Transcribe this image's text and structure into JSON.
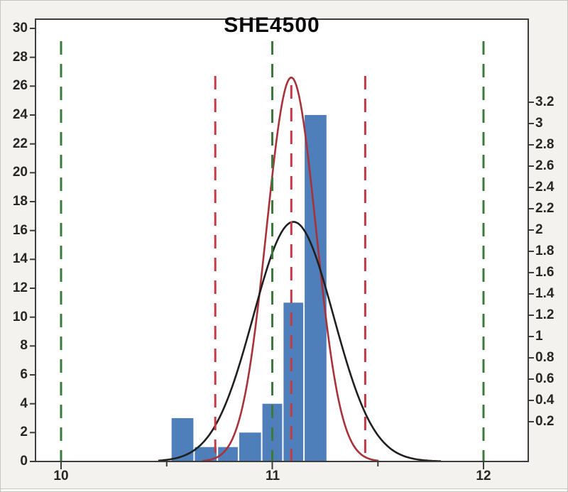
{
  "chart_data": {
    "type": "histogram",
    "title": "SHE4500",
    "x_axis": {
      "ticks": [
        {
          "v": 10,
          "t": "10"
        },
        {
          "v": 11,
          "t": "11"
        },
        {
          "v": 12,
          "t": "12"
        }
      ],
      "minor_ticks": [
        10.5,
        11.5
      ],
      "range": [
        9.88,
        12.22
      ]
    },
    "y_axis_left": {
      "tick_values": [
        0,
        2,
        4,
        6,
        8,
        10,
        12,
        14,
        16,
        18,
        20,
        22,
        24,
        26,
        28,
        30
      ],
      "range": [
        0,
        30.7
      ]
    },
    "y_axis_right": {
      "ticks": [
        {
          "v": 0.2,
          "t": "0.2"
        },
        {
          "v": 0.4,
          "t": "0.4"
        },
        {
          "v": 0.6,
          "t": "0.6"
        },
        {
          "v": 0.8,
          "t": "0.8"
        },
        {
          "v": 1.0,
          "t": "1"
        },
        {
          "v": 1.2,
          "t": "1.2"
        },
        {
          "v": 1.4,
          "t": "1.4"
        },
        {
          "v": 1.6,
          "t": "1.6"
        },
        {
          "v": 1.8,
          "t": "1.8"
        },
        {
          "v": 2.0,
          "t": "2"
        },
        {
          "v": 2.2,
          "t": "2.2"
        },
        {
          "v": 2.4,
          "t": "2.4"
        },
        {
          "v": 2.6,
          "t": "2.6"
        },
        {
          "v": 2.8,
          "t": "2.8"
        },
        {
          "v": 3.0,
          "t": "3"
        },
        {
          "v": 3.2,
          "t": "3.2"
        }
      ]
    },
    "histogram": {
      "bin_edges": [
        10.52,
        10.63,
        10.74,
        10.84,
        10.95,
        11.05,
        11.15,
        11.26
      ],
      "counts": [
        3,
        1,
        1,
        2,
        4,
        11,
        24
      ]
    },
    "fit_curves": [
      {
        "name": "within-fit",
        "mean": 11.09,
        "sigma": 0.117,
        "peak": 26.6,
        "draw_range": [
          10.67,
          11.51
        ],
        "color": "#a8323a"
      },
      {
        "name": "overall-fit",
        "mean": 11.1,
        "sigma": 0.19,
        "peak": 16.6,
        "draw_range": [
          10.46,
          11.8
        ],
        "color": "#1f1f1f"
      }
    ],
    "reference_lines": [
      {
        "name": "green-ref-line-lower",
        "x": 10.0,
        "role": "spec",
        "color": "#3c7a3c"
      },
      {
        "name": "green-ref-line-center",
        "x": 11.0,
        "role": "spec",
        "color": "#3c7a3c"
      },
      {
        "name": "green-ref-line-upper",
        "x": 12.0,
        "role": "spec",
        "color": "#3c7a3c"
      },
      {
        "name": "red-ref-line-lower",
        "x": 10.73,
        "role": "process",
        "color": "#c43b47"
      },
      {
        "name": "red-ref-line-mean",
        "x": 11.09,
        "role": "mean",
        "color": "#c43b47"
      },
      {
        "name": "red-ref-line-upper",
        "x": 11.44,
        "role": "process",
        "color": "#c43b47"
      }
    ],
    "colors": {
      "bar_fill": "#4e7fba",
      "bar_gap": "#ffffff",
      "axis": "#3d3d3d",
      "text": "#262626",
      "plot_background": "#ffffff",
      "page_background": "#f3f2ee"
    }
  }
}
